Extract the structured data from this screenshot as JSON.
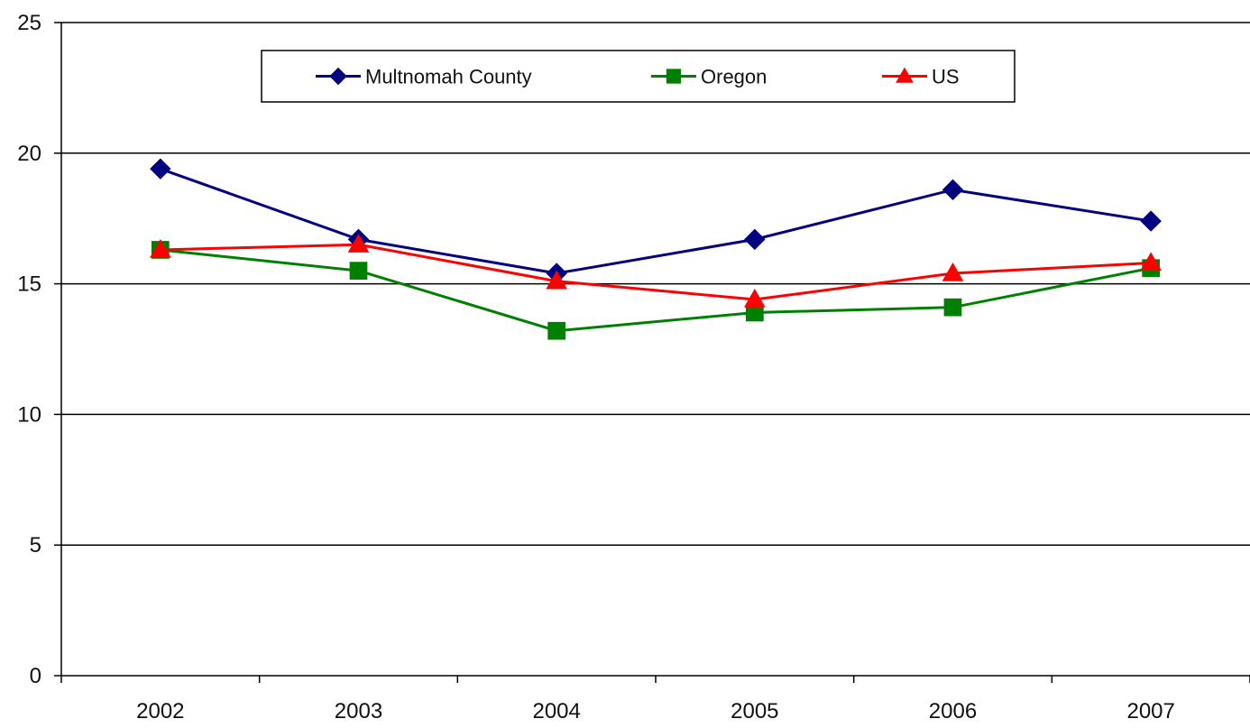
{
  "chart_data": {
    "type": "line",
    "title": "",
    "xlabel": "",
    "ylabel": "",
    "categories": [
      "2002",
      "2003",
      "2004",
      "2005",
      "2006",
      "2007"
    ],
    "ylim": [
      0,
      25
    ],
    "yticks": [
      "0",
      "5",
      "10",
      "15",
      "20",
      "25"
    ],
    "grid": "horizontal major gridlines",
    "legend_position": "top-center",
    "series": [
      {
        "name": "Multnomah County",
        "color": "#000080",
        "marker": "diamond",
        "values": [
          19.4,
          16.7,
          15.4,
          16.7,
          18.6,
          17.4
        ]
      },
      {
        "name": "Oregon",
        "color": "#008000",
        "marker": "square",
        "values": [
          16.3,
          15.5,
          13.2,
          13.9,
          14.1,
          15.6
        ]
      },
      {
        "name": "US",
        "color": "#ff0000",
        "marker": "triangle",
        "values": [
          16.3,
          16.5,
          15.1,
          14.4,
          15.4,
          15.8
        ]
      }
    ]
  }
}
